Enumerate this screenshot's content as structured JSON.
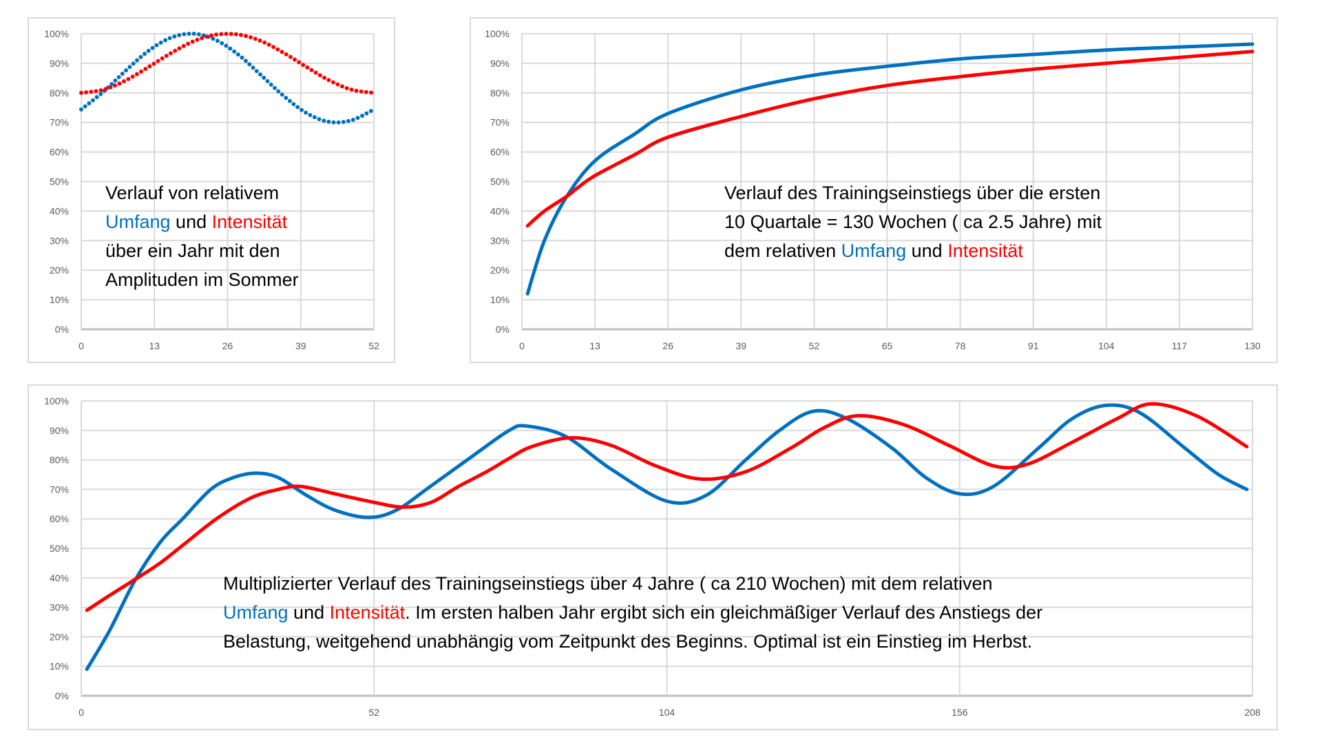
{
  "colors": {
    "umfang": "#0070C0",
    "intensitaet": "#FF0000",
    "grid": "#d9d9d9"
  },
  "notes": {
    "chart1": {
      "l1": "Verlauf von relativem",
      "umfang": "Umfang",
      "und": " und ",
      "intensitaet": "Intensität",
      "l3": "über ein Jahr mit den",
      "l4": "Amplituden im Sommer"
    },
    "chart2": {
      "l1": "Verlauf des Trainingseinstiegs über die ersten",
      "l2": "10 Quartale = 130 Wochen ( ca 2.5 Jahre) mit",
      "l3a": "dem relativen ",
      "umfang": "Umfang",
      "und": " und ",
      "intensitaet": "Intensität"
    },
    "chart3": {
      "l1": "Multiplizierter Verlauf des Trainingseinstiegs über 4 Jahre ( ca 210 Wochen) mit dem relativen",
      "umfang": "Umfang",
      "und": " und ",
      "intensitaet": "Intensität",
      "l2b": ". Im ersten halben Jahr ergibt sich ein gleichmäßiger Verlauf des Anstiegs der",
      "l3": "Belastung, weitgehend unabhängig vom Zeitpunkt des Beginns. Optimal ist ein Einstieg im Herbst."
    }
  },
  "chart_data": [
    {
      "type": "line",
      "style": "dotted",
      "title": "",
      "xlim": [
        0,
        52
      ],
      "xticks": [
        0,
        13,
        26,
        39,
        52
      ],
      "ylim": [
        0,
        100
      ],
      "yticks": [
        "0%",
        "10%",
        "20%",
        "30%",
        "40%",
        "50%",
        "60%",
        "70%",
        "80%",
        "90%",
        "100%"
      ],
      "grid": true,
      "series": [
        {
          "name": "Umfang",
          "points": [
            [
              0,
              74.4
            ],
            [
              4,
              80.5
            ],
            [
              8,
              87.7
            ],
            [
              12,
              94.3
            ],
            [
              16,
              98.7
            ],
            [
              20,
              100
            ],
            [
              24,
              97.8
            ],
            [
              28,
              92.8
            ],
            [
              32,
              85.9
            ],
            [
              36,
              78.9
            ],
            [
              40,
              73.2
            ],
            [
              44,
              70.2
            ],
            [
              48,
              70.7
            ],
            [
              52,
              74.4
            ]
          ]
        },
        {
          "name": "Intensität",
          "points": [
            [
              0,
              80
            ],
            [
              4,
              81.1
            ],
            [
              8,
              84.3
            ],
            [
              12,
              88.8
            ],
            [
              16,
              93.5
            ],
            [
              20,
              97.5
            ],
            [
              24,
              99.7
            ],
            [
              28,
              99.7
            ],
            [
              32,
              97.5
            ],
            [
              36,
              93.5
            ],
            [
              40,
              88.8
            ],
            [
              44,
              84.3
            ],
            [
              48,
              81.1
            ],
            [
              52,
              80
            ]
          ]
        }
      ]
    },
    {
      "type": "line",
      "style": "solid",
      "title": "",
      "xlim": [
        0,
        130
      ],
      "xticks": [
        0,
        13,
        26,
        39,
        52,
        65,
        78,
        91,
        104,
        117,
        130
      ],
      "ylim": [
        0,
        100
      ],
      "yticks": [
        "0%",
        "10%",
        "20%",
        "30%",
        "40%",
        "50%",
        "60%",
        "70%",
        "80%",
        "90%",
        "100%"
      ],
      "grid": true,
      "series": [
        {
          "name": "Umfang",
          "points": [
            [
              1,
              12
            ],
            [
              4,
              30
            ],
            [
              8,
              45
            ],
            [
              13,
              57
            ],
            [
              20,
              66
            ],
            [
              26,
              73
            ],
            [
              39,
              81
            ],
            [
              52,
              86
            ],
            [
              65,
              89
            ],
            [
              78,
              91.5
            ],
            [
              91,
              93
            ],
            [
              104,
              94.5
            ],
            [
              117,
              95.5
            ],
            [
              130,
              96.5
            ]
          ]
        },
        {
          "name": "Intensität",
          "points": [
            [
              1,
              35
            ],
            [
              4,
              40
            ],
            [
              8,
              45
            ],
            [
              10,
              48
            ],
            [
              13,
              52
            ],
            [
              20,
              59
            ],
            [
              26,
              65
            ],
            [
              39,
              72
            ],
            [
              52,
              78
            ],
            [
              65,
              82.5
            ],
            [
              78,
              85.5
            ],
            [
              91,
              88
            ],
            [
              104,
              90
            ],
            [
              117,
              92
            ],
            [
              130,
              94
            ]
          ]
        }
      ]
    },
    {
      "type": "line",
      "style": "solid",
      "title": "",
      "xlim": [
        0,
        208
      ],
      "xticks": [
        0,
        52,
        104,
        156,
        208
      ],
      "ylim": [
        0,
        100
      ],
      "yticks": [
        "0%",
        "10%",
        "20%",
        "30%",
        "40%",
        "50%",
        "60%",
        "70%",
        "80%",
        "90%",
        "100%"
      ],
      "grid": true,
      "series": [
        {
          "name": "Umfang",
          "points": [
            [
              1,
              9
            ],
            [
              5,
              22
            ],
            [
              9.5,
              39
            ],
            [
              14,
              52
            ],
            [
              18,
              60
            ],
            [
              23,
              70
            ],
            [
              27,
              74
            ],
            [
              31,
              75.5
            ],
            [
              35,
              74
            ],
            [
              40,
              68
            ],
            [
              45,
              63
            ],
            [
              51,
              60.5
            ],
            [
              56,
              63
            ],
            [
              62,
              71
            ],
            [
              70,
              82
            ],
            [
              76,
              90
            ],
            [
              79,
              91.5
            ],
            [
              86,
              88
            ],
            [
              94,
              77
            ],
            [
              104,
              66
            ],
            [
              111,
              68
            ],
            [
              118,
              80
            ],
            [
              124,
              90
            ],
            [
              130,
              96.5
            ],
            [
              136,
              94
            ],
            [
              144,
              84
            ],
            [
              150,
              74
            ],
            [
              156,
              68.5
            ],
            [
              162,
              71
            ],
            [
              170,
              84
            ],
            [
              176,
              94
            ],
            [
              182,
              98.5
            ],
            [
              188,
              96
            ],
            [
              196,
              84
            ],
            [
              202,
              75
            ],
            [
              207,
              70
            ]
          ]
        },
        {
          "name": "Intensität",
          "points": [
            [
              1,
              29
            ],
            [
              5,
              34
            ],
            [
              10,
              40
            ],
            [
              14,
              45
            ],
            [
              18,
              51
            ],
            [
              24,
              60
            ],
            [
              30,
              67
            ],
            [
              35,
              70
            ],
            [
              39,
              71
            ],
            [
              45,
              68.5
            ],
            [
              51,
              66
            ],
            [
              57,
              64
            ],
            [
              62,
              65.5
            ],
            [
              67,
              71
            ],
            [
              72,
              76
            ],
            [
              76,
              80.5
            ],
            [
              80,
              84.5
            ],
            [
              87,
              87.5
            ],
            [
              94,
              85
            ],
            [
              102,
              78
            ],
            [
              110,
              73.5
            ],
            [
              118,
              76
            ],
            [
              126,
              84
            ],
            [
              132,
              91
            ],
            [
              138,
              95
            ],
            [
              146,
              92
            ],
            [
              154,
              85
            ],
            [
              162,
              78
            ],
            [
              168,
              78.5
            ],
            [
              176,
              86
            ],
            [
              184,
              94
            ],
            [
              190,
              99
            ],
            [
              198,
              95
            ],
            [
              207,
              84.5
            ]
          ]
        }
      ]
    }
  ]
}
